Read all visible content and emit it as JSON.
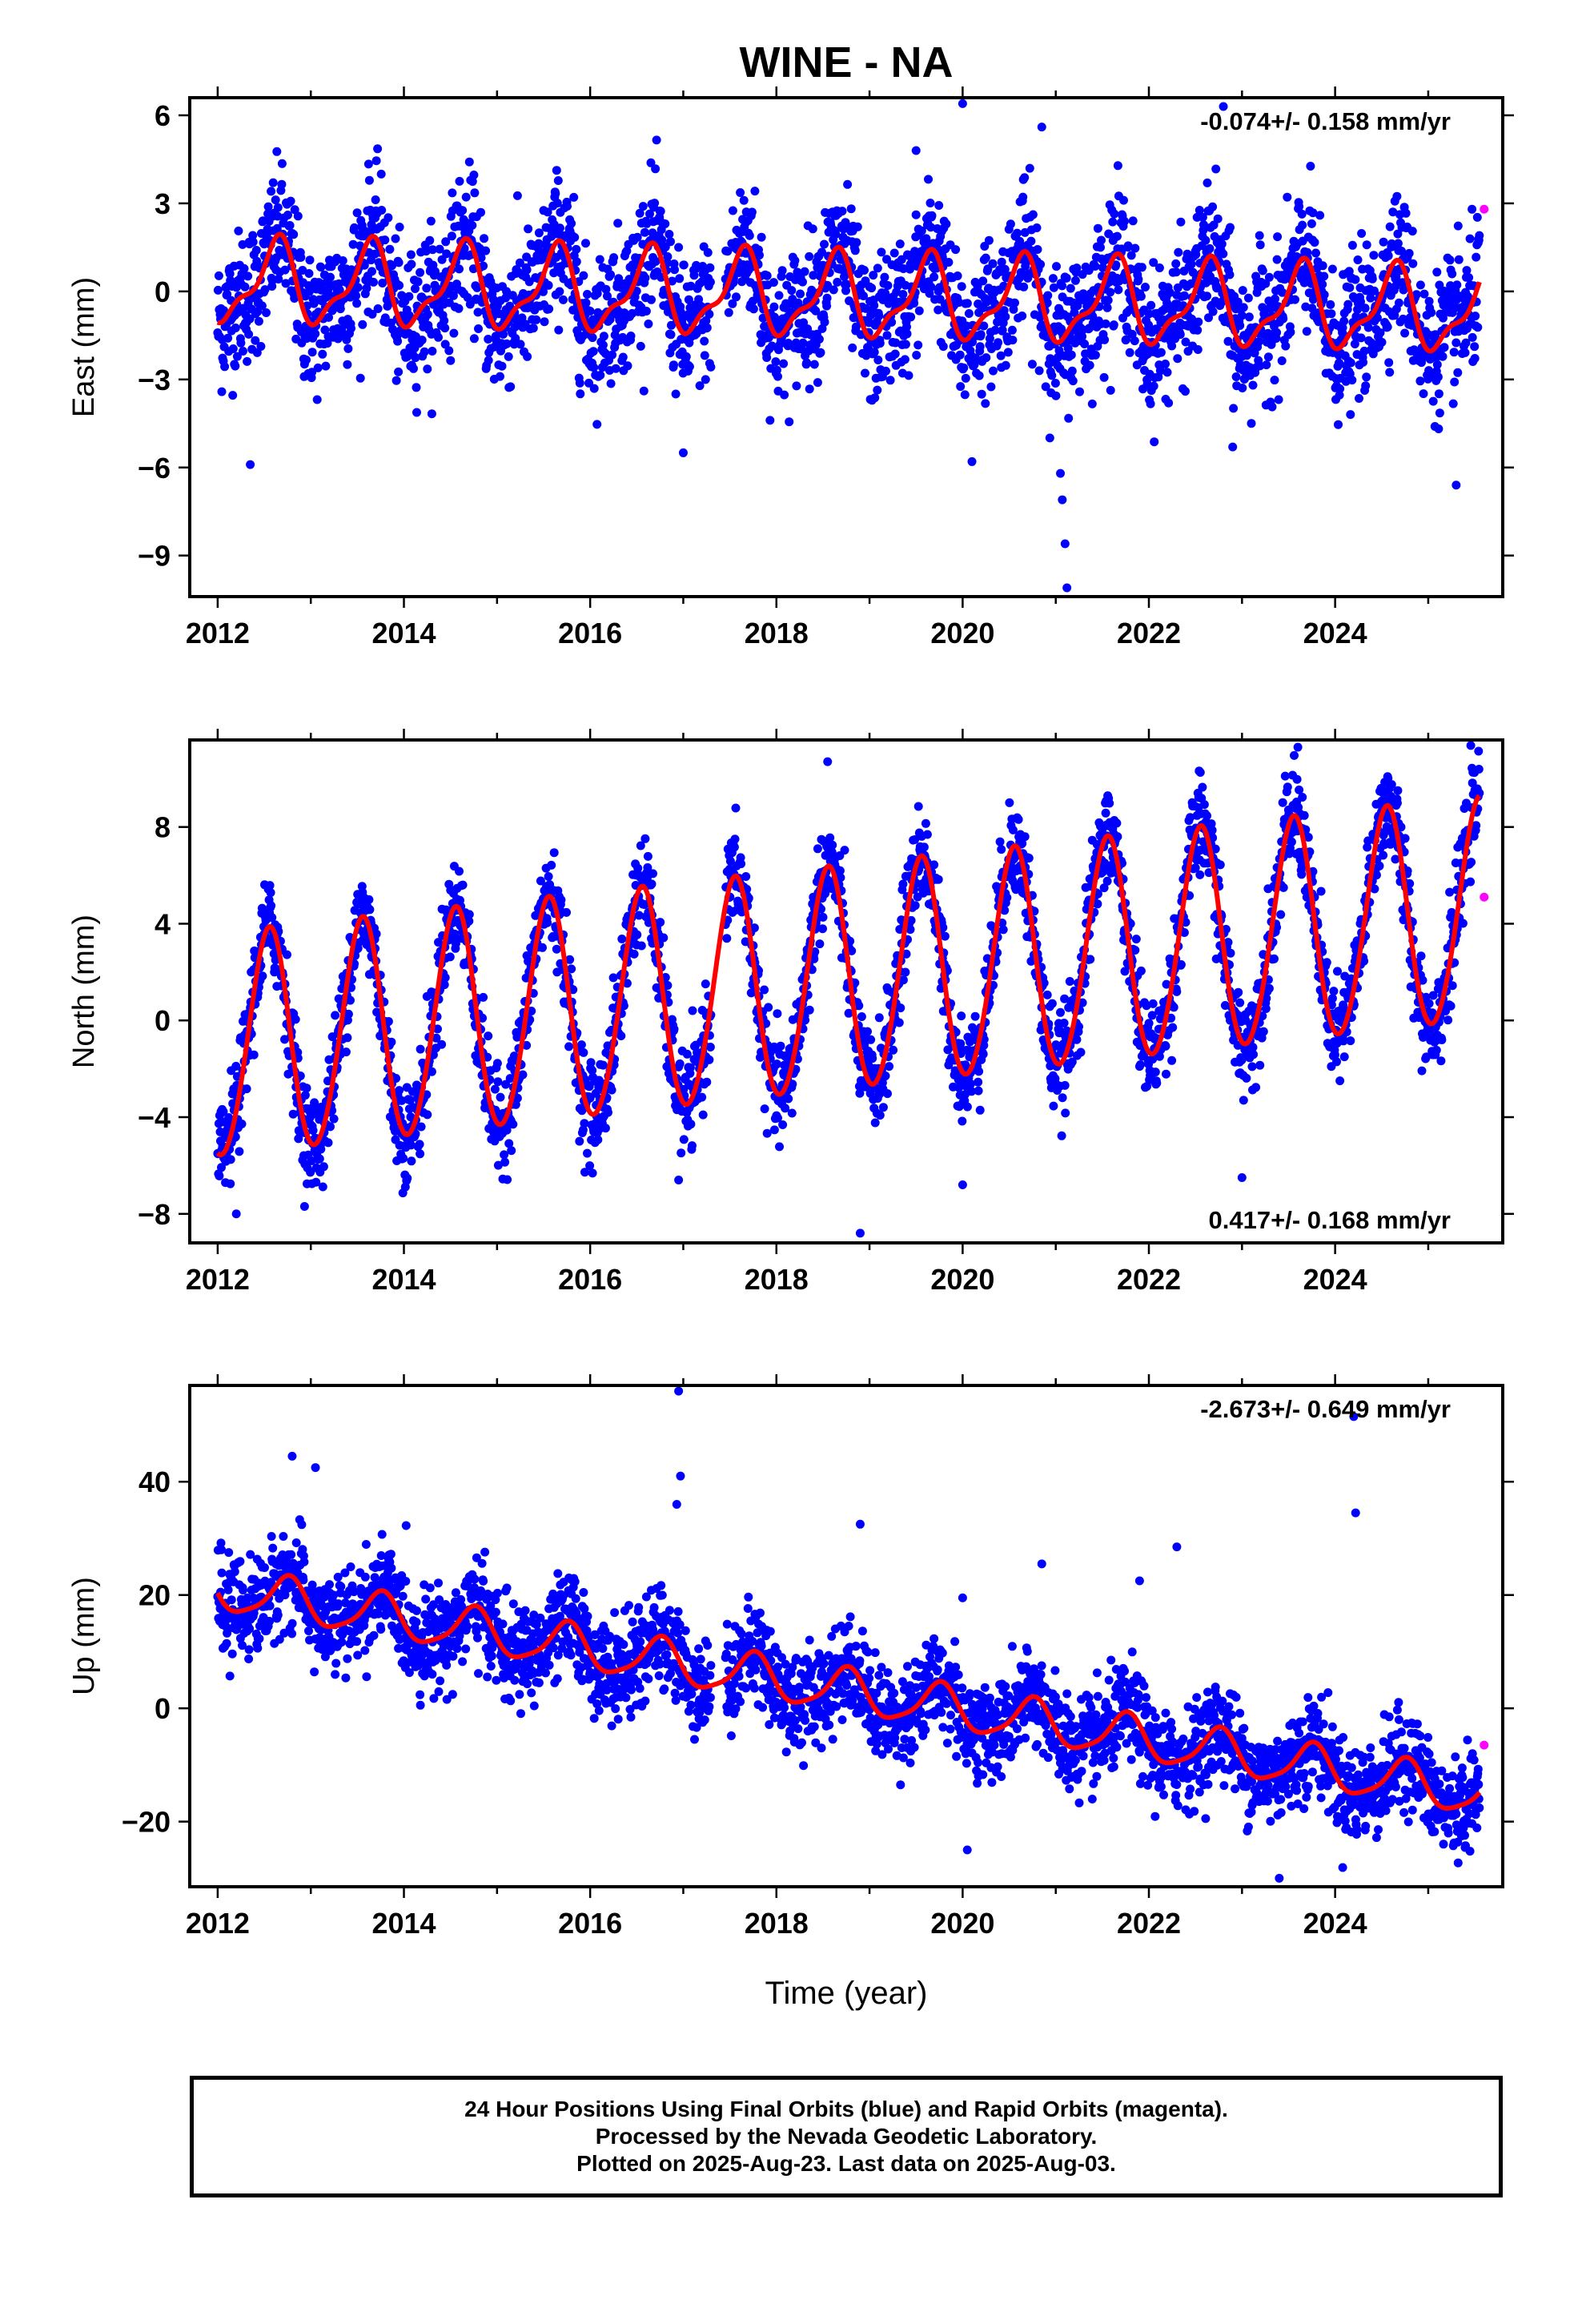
{
  "page_title": "WINE - NA",
  "colors": {
    "final_orbits": "#0000ff",
    "rapid_orbits": "#ff00ff",
    "model": "#ff0000",
    "axes": "#000000"
  },
  "xlabel": "Time (year)",
  "footer": {
    "line1": "24 Hour Positions Using Final Orbits (blue) and Rapid Orbits (magenta).",
    "line2": "Processed by the Nevada Geodetic Laboratory.",
    "line3": "Plotted on 2025-Aug-23. Last data on 2025-Aug-03."
  },
  "chart_data": [
    {
      "type": "scatter",
      "component": "east",
      "ylabel": "East (mm)",
      "rate_label": "-0.074+/- 0.158 mm/yr",
      "rate_position": "top-right",
      "xlim": [
        2011.7,
        2025.8
      ],
      "ylim": [
        -10.4,
        6.6
      ],
      "xticks": [
        2012,
        2014,
        2016,
        2018,
        2020,
        2022,
        2024
      ],
      "yticks": [
        6,
        3,
        0,
        -3,
        -6,
        -9
      ],
      "time_range": [
        2012.0,
        2025.55
      ],
      "data_gap": [
        2017.3,
        2017.45
      ],
      "model": {
        "trend_mm_per_yr": -0.074,
        "offset_at_2012": 0.3,
        "annual_amplitude": 1.3,
        "annual_phase_peak": 0.62,
        "semiannual_amplitude": 0.5,
        "semiannual_phase_peak": 0.2,
        "scatter": 1.15
      },
      "rapid_points": [
        [
          2025.6,
          2.8
        ]
      ],
      "outliers": [
        [
          2020.0,
          6.4
        ],
        [
          2020.85,
          5.6
        ],
        [
          2019.5,
          4.8
        ],
        [
          2022.8,
          6.3
        ],
        [
          2017.0,
          -5.5
        ],
        [
          2020.1,
          -5.8
        ],
        [
          2021.05,
          -6.2
        ],
        [
          2021.07,
          -7.1
        ],
        [
          2021.1,
          -8.6
        ],
        [
          2021.12,
          -10.1
        ],
        [
          2022.9,
          -5.3
        ],
        [
          2025.3,
          -6.6
        ],
        [
          2012.35,
          -5.9
        ]
      ],
      "grid": false
    },
    {
      "type": "scatter",
      "component": "north",
      "ylabel": "North (mm)",
      "rate_label": "0.417+/- 0.168 mm/yr",
      "rate_position": "bottom-right",
      "xlim": [
        2011.7,
        2025.8
      ],
      "ylim": [
        -9.2,
        11.6
      ],
      "xticks": [
        2012,
        2014,
        2016,
        2018,
        2020,
        2022,
        2024
      ],
      "yticks": [
        8,
        4,
        0,
        -4,
        -8
      ],
      "time_range": [
        2012.0,
        2025.55
      ],
      "data_gap": [
        2017.3,
        2017.45
      ],
      "model": {
        "trend_mm_per_yr": 0.417,
        "offset_at_2012": -1.2,
        "annual_amplitude": 4.6,
        "annual_phase_peak": 0.55,
        "semiannual_amplitude": 0.3,
        "semiannual_phase_peak": 0.1,
        "scatter": 1.0
      },
      "rapid_points": [
        [
          2025.6,
          5.1
        ]
      ],
      "outliers": [
        [
          2018.9,
          -8.8
        ],
        [
          2020.0,
          -6.8
        ],
        [
          2023.0,
          -6.5
        ],
        [
          2016.95,
          -6.6
        ],
        [
          2023.6,
          11.3
        ],
        [
          2018.55,
          10.7
        ],
        [
          2012.2,
          -8.0
        ]
      ],
      "grid": false
    },
    {
      "type": "scatter",
      "component": "up",
      "ylabel": "Up (mm)",
      "rate_label": "-2.673+/- 0.649 mm/yr",
      "rate_position": "top-right",
      "xlim": [
        2011.7,
        2025.8
      ],
      "ylim": [
        -31.5,
        57.0
      ],
      "xticks": [
        2012,
        2014,
        2016,
        2018,
        2020,
        2022,
        2024
      ],
      "yticks": [
        40,
        20,
        0,
        -20
      ],
      "time_range": [
        2012.0,
        2025.55
      ],
      "data_gap": [
        2017.3,
        2017.45
      ],
      "model": {
        "trend_mm_per_yr": -2.673,
        "offset_at_2012": 21.0,
        "annual_amplitude": 3.8,
        "annual_phase_peak": 0.75,
        "semiannual_amplitude": 0.8,
        "semiannual_phase_peak": 0.3,
        "scatter": 4.2
      },
      "rapid_points": [
        [
          2025.6,
          -6.5
        ]
      ],
      "outliers": [
        [
          2016.95,
          56.0
        ],
        [
          2016.97,
          41.0
        ],
        [
          2016.93,
          36.0
        ],
        [
          2012.8,
          44.5
        ],
        [
          2013.05,
          42.5
        ],
        [
          2018.9,
          32.5
        ],
        [
          2020.0,
          19.5
        ],
        [
          2020.85,
          25.5
        ],
        [
          2021.9,
          22.5
        ],
        [
          2022.3,
          28.5
        ],
        [
          2024.2,
          51.5
        ],
        [
          2024.22,
          34.5
        ],
        [
          2023.4,
          -30.0
        ],
        [
          2020.05,
          -25.0
        ]
      ],
      "grid": false
    }
  ]
}
